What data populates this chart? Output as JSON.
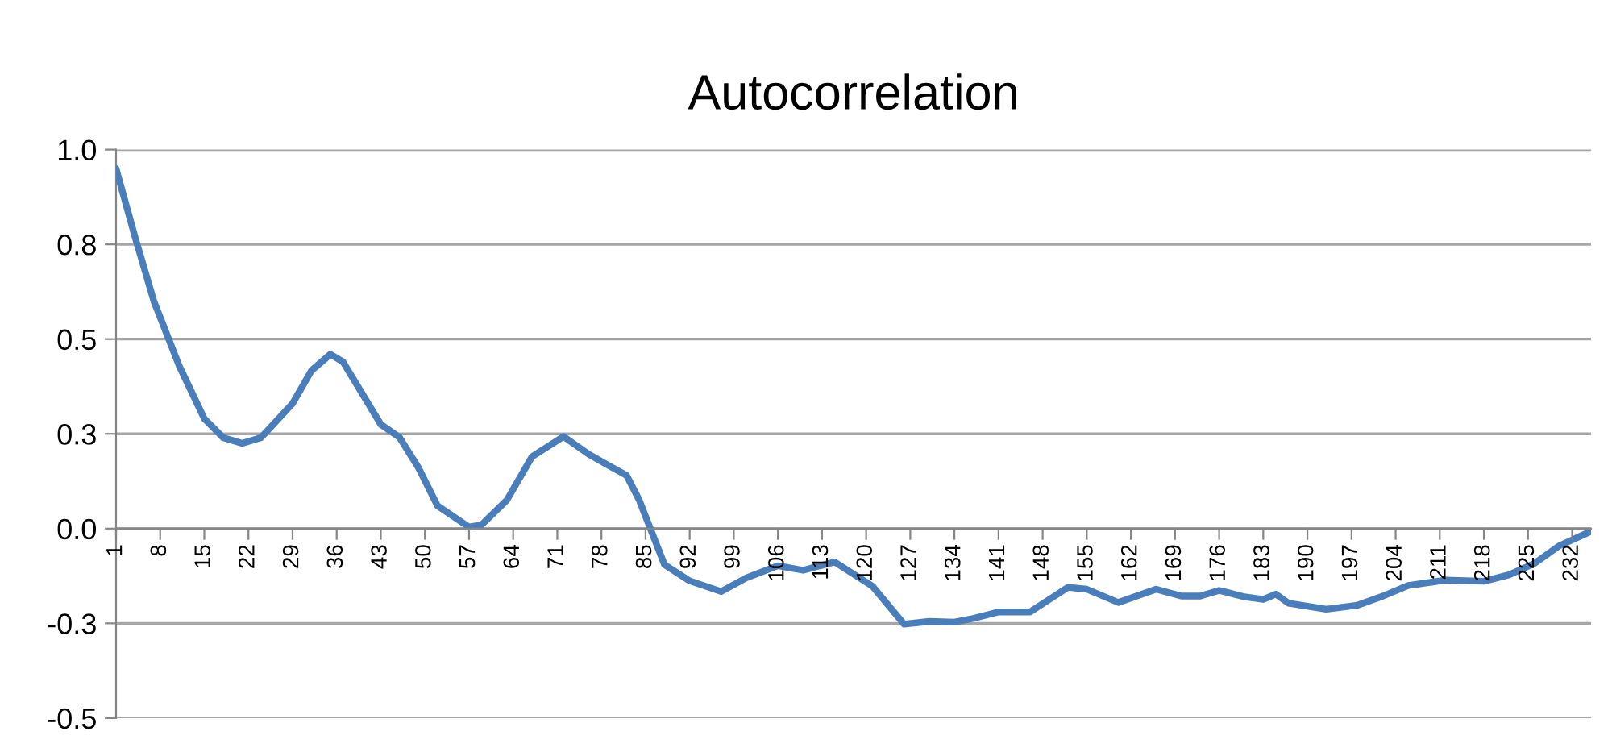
{
  "chart_data": {
    "type": "line",
    "title": "Autocorrelation",
    "xlim": [
      1,
      235
    ],
    "xticks": [
      1,
      8,
      15,
      22,
      29,
      36,
      43,
      50,
      57,
      64,
      71,
      78,
      85,
      92,
      99,
      106,
      113,
      120,
      127,
      134,
      141,
      148,
      155,
      162,
      169,
      176,
      183,
      190,
      197,
      204,
      211,
      218,
      225,
      232
    ],
    "ylim": [
      -0.5,
      1.0
    ],
    "yticks": [
      {
        "value": -0.5,
        "label": "-0.5"
      },
      {
        "value": -0.25,
        "label": "-0.3"
      },
      {
        "value": 0,
        "label": "0.0"
      },
      {
        "value": 0.25,
        "label": "0.3"
      },
      {
        "value": 0.5,
        "label": "0.5"
      },
      {
        "value": 0.75,
        "label": "0.8"
      },
      {
        "value": 1.0,
        "label": "1.0"
      }
    ],
    "grid": "y",
    "marker": "none",
    "line_style": "solid",
    "series": [
      {
        "color": "#4a7ebb",
        "x": [
          1,
          4,
          7,
          11,
          15,
          18,
          21,
          24,
          29,
          32,
          35,
          37,
          41,
          43,
          46,
          49,
          52,
          57,
          59,
          63,
          67,
          72,
          76,
          82,
          84,
          86,
          88,
          92,
          97,
          101,
          106,
          110,
          115,
          121,
          126,
          130,
          134,
          137,
          141,
          146,
          152,
          155,
          160,
          166,
          170,
          173,
          176,
          180,
          183,
          185,
          187,
          193,
          198,
          202,
          206,
          212,
          218,
          222,
          226,
          230,
          235
        ],
        "values": [
          0.95,
          0.77,
          0.6,
          0.43,
          0.29,
          0.24,
          0.225,
          0.24,
          0.33,
          0.417,
          0.46,
          0.44,
          0.33,
          0.275,
          0.24,
          0.16,
          0.06,
          0.004,
          0.01,
          0.075,
          0.19,
          0.243,
          0.196,
          0.14,
          0.075,
          -0.01,
          -0.095,
          -0.138,
          -0.166,
          -0.13,
          -0.098,
          -0.11,
          -0.088,
          -0.152,
          -0.252,
          -0.245,
          -0.247,
          -0.237,
          -0.22,
          -0.22,
          -0.155,
          -0.16,
          -0.195,
          -0.16,
          -0.178,
          -0.178,
          -0.163,
          -0.18,
          -0.187,
          -0.173,
          -0.197,
          -0.213,
          -0.202,
          -0.178,
          -0.15,
          -0.136,
          -0.139,
          -0.122,
          -0.092,
          -0.045,
          -0.007
        ]
      }
    ]
  }
}
